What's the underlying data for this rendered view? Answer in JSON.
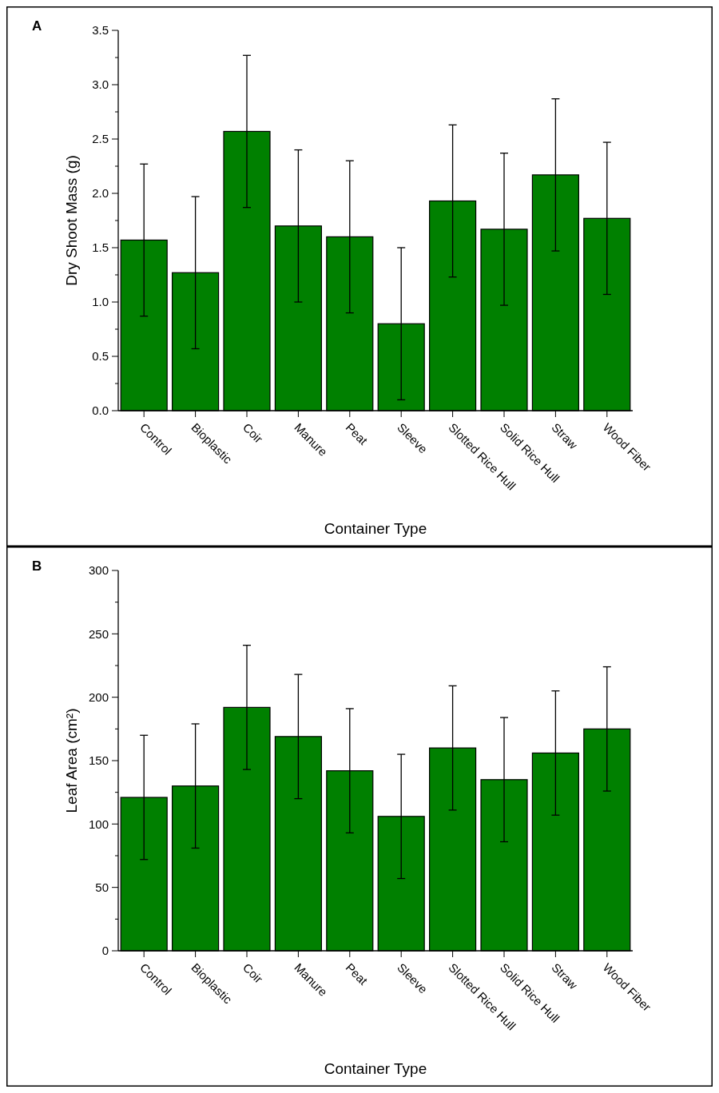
{
  "chart_data": [
    {
      "type": "bar",
      "title": "A",
      "xlabel": "Container Type",
      "ylabel": "Dry Shoot Mass (g)",
      "categories": [
        "Control",
        "Bioplastic",
        "Coir",
        "Manure",
        "Peat",
        "Sleeve",
        "Slotted Rice Hull",
        "Solid Rice Hull",
        "Straw",
        "Wood Fiber"
      ],
      "values": [
        1.57,
        1.27,
        2.57,
        1.7,
        1.6,
        0.8,
        1.93,
        1.67,
        2.17,
        1.77
      ],
      "errors": [
        0.7,
        0.7,
        0.7,
        0.7,
        0.7,
        0.7,
        0.7,
        0.7,
        0.7,
        0.7
      ],
      "color": "#008000",
      "ylim": [
        0,
        3.5
      ],
      "yticks": [
        {
          "value": 0,
          "label": "0.0"
        },
        {
          "value": 0.25,
          "label": null
        },
        {
          "value": 0.5,
          "label": "0.5"
        },
        {
          "value": 0.75,
          "label": null
        },
        {
          "value": 1,
          "label": "1.0"
        },
        {
          "value": 1.25,
          "label": null
        },
        {
          "value": 1.5,
          "label": "1.5"
        },
        {
          "value": 1.75,
          "label": null
        },
        {
          "value": 2,
          "label": "2.0"
        },
        {
          "value": 2.25,
          "label": null
        },
        {
          "value": 2.5,
          "label": "2.5"
        },
        {
          "value": 2.75,
          "label": null
        },
        {
          "value": 3,
          "label": "3.0"
        },
        {
          "value": 3.25,
          "label": null
        },
        {
          "value": 3.5,
          "label": "3.5"
        }
      ]
    },
    {
      "type": "bar",
      "title": "B",
      "xlabel": "Container Type",
      "ylabel": "Leaf Area (cm²)",
      "categories": [
        "Control",
        "Bioplastic",
        "Coir",
        "Manure",
        "Peat",
        "Sleeve",
        "Slotted Rice Hull",
        "Solid Rice Hull",
        "Straw",
        "Wood Fiber"
      ],
      "values": [
        121,
        130,
        192,
        169,
        142,
        106,
        160,
        135,
        156,
        175
      ],
      "errors": [
        49,
        49,
        49,
        49,
        49,
        49,
        49,
        49,
        49,
        49
      ],
      "color": "#008000",
      "ylim": [
        0,
        300
      ],
      "yticks": [
        0,
        {
          "value": 25,
          "label": null
        },
        50,
        {
          "value": 75,
          "label": null
        },
        100,
        {
          "value": 125,
          "label": null
        },
        150,
        {
          "value": 175,
          "label": null
        },
        200,
        {
          "value": 225,
          "label": null
        },
        250,
        {
          "value": 275,
          "label": null
        },
        300
      ]
    }
  ]
}
